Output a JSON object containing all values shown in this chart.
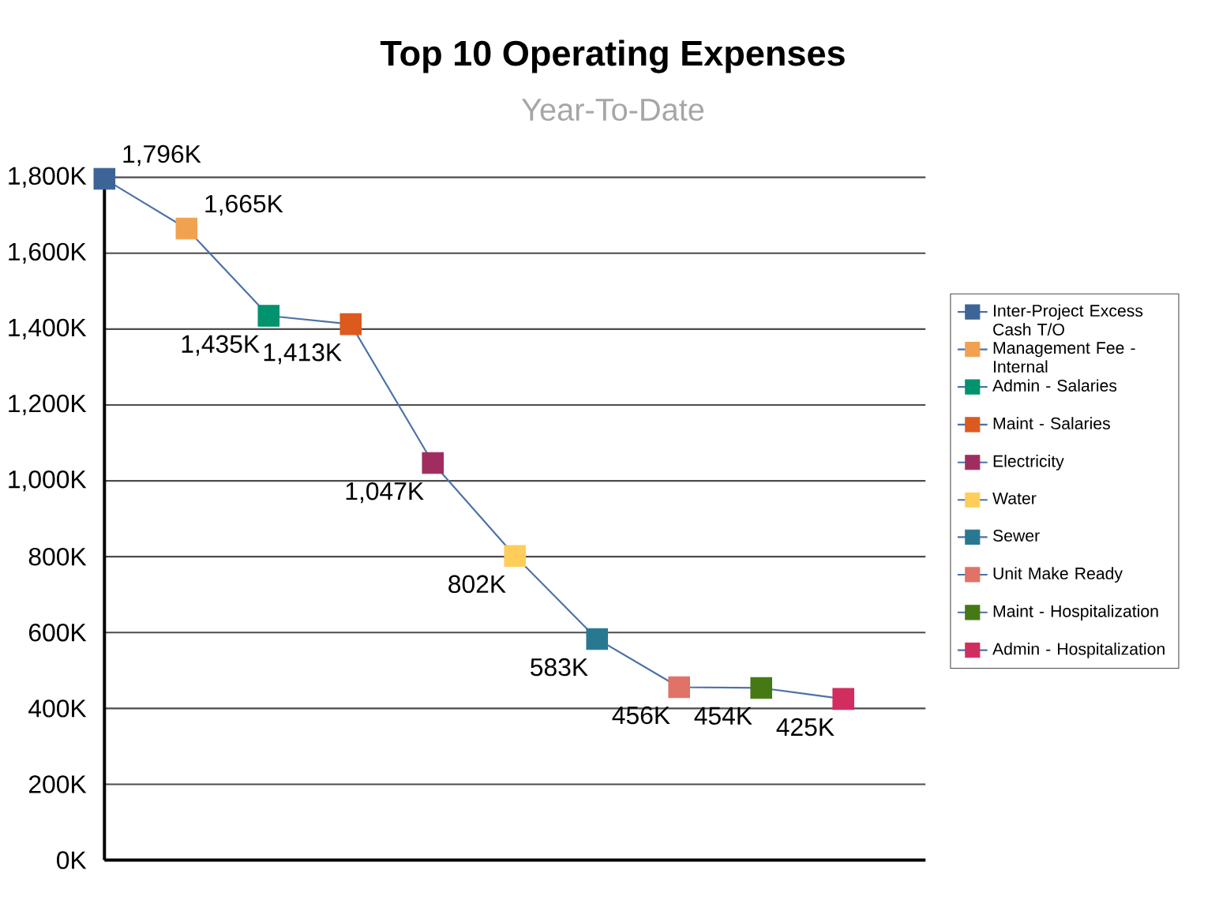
{
  "chart_data": {
    "type": "line",
    "title": "Top 10 Operating Expenses",
    "subtitle": "Year-To-Date",
    "categories": [
      null,
      null,
      null,
      null,
      null,
      null,
      null,
      null,
      null,
      null
    ],
    "series": [
      {
        "color": "#4a72a8",
        "marker": "none",
        "values": [
          1796,
          1665,
          1435,
          1413,
          1047,
          802,
          583,
          456,
          454,
          425
        ],
        "value_labels": [
          "1,796K",
          "1,665K",
          "1,435K",
          "1,413K",
          "1,047K",
          "802K",
          "583K",
          "456K",
          "454K",
          "425K"
        ]
      },
      {
        "type": "scatter",
        "name": "Inter-Project Excess Cash T/O",
        "color": "#3c6496",
        "values": [
          1796,
          null,
          null,
          null,
          null,
          null,
          null,
          null,
          null,
          null
        ]
      },
      {
        "type": "scatter",
        "name": "Management Fee - Internal",
        "color": "#f0a250",
        "values": [
          null,
          1665,
          null,
          null,
          null,
          null,
          null,
          null,
          null,
          null
        ]
      },
      {
        "type": "scatter",
        "name": "Admin - Salaries",
        "color": "#00936e",
        "values": [
          null,
          null,
          1435,
          null,
          null,
          null,
          null,
          null,
          null,
          null
        ]
      },
      {
        "type": "scatter",
        "name": "Maint - Salaries",
        "color": "#dc5a1e",
        "values": [
          null,
          null,
          null,
          1413,
          null,
          null,
          null,
          null,
          null,
          null
        ]
      },
      {
        "type": "scatter",
        "name": "Electricity",
        "color": "#a02d5f",
        "values": [
          null,
          null,
          null,
          null,
          1047,
          null,
          null,
          null,
          null,
          null
        ]
      },
      {
        "type": "scatter",
        "name": "Water",
        "color": "#ffcd5a",
        "values": [
          null,
          null,
          null,
          null,
          null,
          802,
          null,
          null,
          null,
          null
        ]
      },
      {
        "type": "scatter",
        "name": "Sewer",
        "color": "#287891",
        "values": [
          null,
          null,
          null,
          null,
          null,
          null,
          583,
          null,
          null,
          null
        ]
      },
      {
        "type": "scatter",
        "name": "Unit Make Ready",
        "color": "#e07266",
        "values": [
          null,
          null,
          null,
          null,
          null,
          null,
          null,
          456,
          null,
          null
        ]
      },
      {
        "type": "scatter",
        "name": "Maint - Hospitalization",
        "color": "#467814",
        "values": [
          null,
          null,
          null,
          null,
          null,
          null,
          null,
          null,
          454,
          null
        ]
      },
      {
        "type": "scatter",
        "name": "Admin - Hospitalization",
        "color": "#d22d5f",
        "values": [
          null,
          null,
          null,
          null,
          null,
          null,
          null,
          null,
          null,
          425
        ]
      }
    ],
    "ylim": [
      0,
      1800
    ],
    "yticks": [
      {
        "value": 0,
        "label": "0K"
      },
      {
        "value": 200,
        "label": "200K"
      },
      {
        "value": 400,
        "label": "400K"
      },
      {
        "value": 600,
        "label": "600K"
      },
      {
        "value": 800,
        "label": "800K"
      },
      {
        "value": 1000,
        "label": "1,000K"
      },
      {
        "value": 1200,
        "label": "1,200K"
      },
      {
        "value": 1400,
        "label": "1,400K"
      },
      {
        "value": 1600,
        "label": "1,600K"
      },
      {
        "value": 1800,
        "label": "1,800K"
      }
    ],
    "grid": "y",
    "legend": "right",
    "tick_labels": "y",
    "marker": "square",
    "line_style": "solid"
  }
}
